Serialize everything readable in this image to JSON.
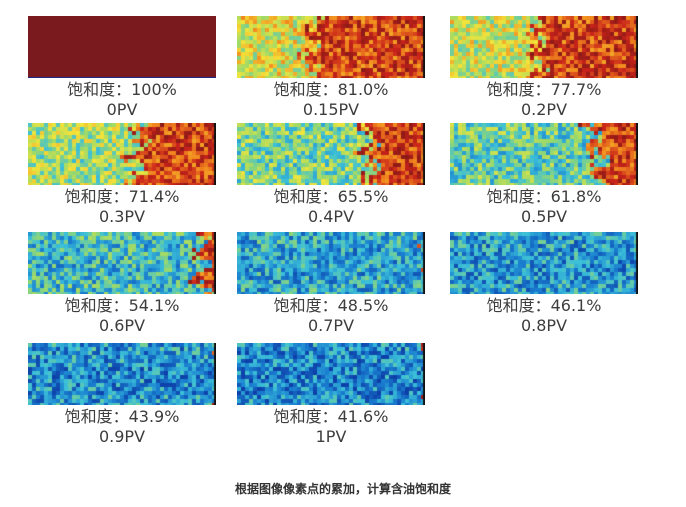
{
  "figure": {
    "panels": [
      {
        "saturation": "饱和度：100%",
        "pv": "0PV",
        "saturation_fraction": 1.0
      },
      {
        "saturation": "饱和度：81.0%",
        "pv": "0.15PV",
        "saturation_fraction": 0.81
      },
      {
        "saturation": "饱和度：77.7%",
        "pv": "0.2PV",
        "saturation_fraction": 0.777
      },
      {
        "saturation": "饱和度：71.4%",
        "pv": "0.3PV",
        "saturation_fraction": 0.714
      },
      {
        "saturation": "饱和度：65.5%",
        "pv": "0.4PV",
        "saturation_fraction": 0.655
      },
      {
        "saturation": "饱和度：61.8%",
        "pv": "0.5PV",
        "saturation_fraction": 0.618
      },
      {
        "saturation": "饱和度：54.1%",
        "pv": "0.6PV",
        "saturation_fraction": 0.541
      },
      {
        "saturation": "饱和度：48.5%",
        "pv": "0.7PV",
        "saturation_fraction": 0.485
      },
      {
        "saturation": "饱和度：46.1%",
        "pv": "0.8PV",
        "saturation_fraction": 0.461
      },
      {
        "saturation": "饱和度：43.9%",
        "pv": "0.9PV",
        "saturation_fraction": 0.439
      },
      {
        "saturation": "饱和度：41.6%",
        "pv": "1PV",
        "saturation_fraction": 0.416
      }
    ],
    "colormap": [
      "#0d3fa8",
      "#1a7fd0",
      "#3cc0d8",
      "#9bd96a",
      "#f3e53a",
      "#f28a1e",
      "#c8221a",
      "#7a1717"
    ],
    "caption": "根据图像像素点的累加，计算含油饱和度"
  }
}
